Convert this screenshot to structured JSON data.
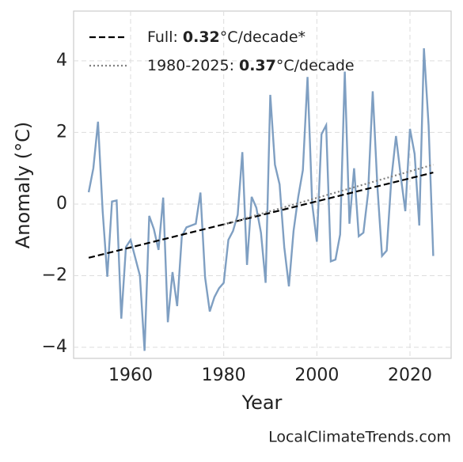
{
  "chart_data": {
    "type": "line",
    "x_label": "Year",
    "y_label": "Anomaly (°C)",
    "credit": "LocalClimateTrends.com",
    "x": [
      1951,
      1952,
      1953,
      1954,
      1955,
      1956,
      1957,
      1958,
      1959,
      1960,
      1961,
      1962,
      1963,
      1964,
      1965,
      1966,
      1967,
      1968,
      1969,
      1970,
      1971,
      1972,
      1973,
      1974,
      1975,
      1976,
      1977,
      1978,
      1979,
      1980,
      1981,
      1982,
      1983,
      1984,
      1985,
      1986,
      1987,
      1988,
      1989,
      1990,
      1991,
      1992,
      1993,
      1994,
      1995,
      1996,
      1997,
      1998,
      1999,
      2000,
      2001,
      2002,
      2003,
      2004,
      2005,
      2006,
      2007,
      2008,
      2009,
      2010,
      2011,
      2012,
      2013,
      2014,
      2015,
      2016,
      2017,
      2018,
      2019,
      2020,
      2021,
      2022,
      2023,
      2024,
      2025
    ],
    "series": [
      {
        "color": "#7f9fc2",
        "values": [
          0.33,
          1.0,
          2.3,
          -0.2,
          -2.03,
          0.07,
          0.1,
          -3.2,
          -1.2,
          -1.0,
          -1.5,
          -2.0,
          -4.1,
          -0.33,
          -0.7,
          -1.28,
          0.18,
          -3.3,
          -1.9,
          -2.85,
          -0.9,
          -0.65,
          -0.6,
          -0.55,
          0.32,
          -2.05,
          -3.0,
          -2.6,
          -2.35,
          -2.2,
          -1.0,
          -0.75,
          -0.3,
          1.45,
          -1.7,
          0.2,
          -0.1,
          -0.8,
          -2.2,
          3.05,
          1.1,
          0.55,
          -1.2,
          -2.3,
          -0.75,
          0.2,
          0.95,
          3.55,
          0.0,
          -1.05,
          1.95,
          2.2,
          -1.6,
          -1.55,
          -0.85,
          3.7,
          -0.55,
          1.0,
          -0.9,
          -0.8,
          0.3,
          3.15,
          0.5,
          -1.45,
          -1.3,
          0.7,
          1.9,
          0.8,
          -0.2,
          2.1,
          1.4,
          -0.6,
          4.35,
          2.2,
          -1.45
        ]
      }
    ],
    "trend_lines": [
      {
        "label_prefix": "Full:",
        "rate": 0.32,
        "label_suffix": "°C/decade*",
        "style": "dashed",
        "color": "#000000",
        "x": [
          1951,
          2025
        ],
        "values": [
          -1.5,
          0.88
        ]
      },
      {
        "label_prefix": "1980-2025:",
        "rate": 0.37,
        "label_suffix": "°C/decade",
        "style": "dotted",
        "color": "#808080",
        "x": [
          1980,
          2025
        ],
        "values": [
          -0.57,
          1.1
        ]
      }
    ],
    "xlim": [
      1947.76,
      2028.84
    ],
    "ylim": [
      -4.31,
      5.39
    ],
    "xticks": [
      1960,
      1980,
      2000,
      2020
    ],
    "yticks": [
      {
        "value": -4,
        "label": "−4"
      },
      {
        "value": -2,
        "label": "−2"
      },
      0,
      2,
      4
    ],
    "grid": true,
    "legend_position": "upper left"
  }
}
